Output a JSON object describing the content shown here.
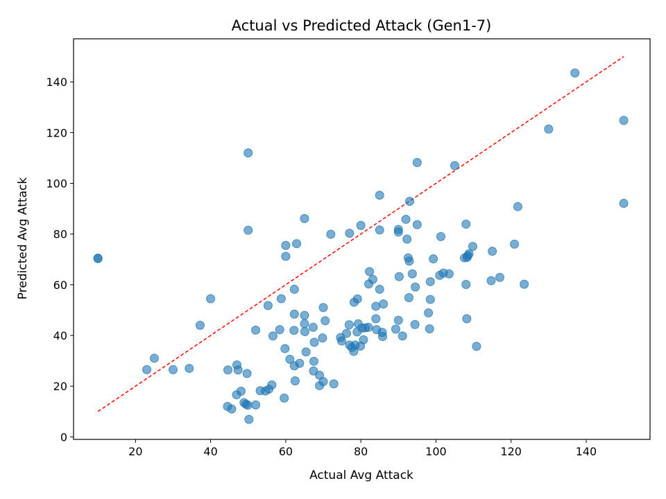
{
  "chart_data": {
    "type": "scatter",
    "title": "Actual vs Predicted Attack (Gen1-7)",
    "xlabel": "Actual Avg Attack",
    "ylabel": "Predicted Avg Attack",
    "xlim": [
      3.5,
      157
    ],
    "ylim": [
      -1,
      157
    ],
    "xticks": [
      20,
      40,
      60,
      80,
      100,
      120,
      140
    ],
    "yticks": [
      0,
      20,
      40,
      60,
      80,
      100,
      120,
      140
    ],
    "grid": false,
    "legend": "none",
    "colors": {
      "points": "#1f77b4",
      "reference_line": "#ff0000",
      "frame": "#000000"
    },
    "reference_line": {
      "style": "dashed",
      "x": [
        10,
        150
      ],
      "y": [
        10,
        150
      ]
    },
    "points": [
      {
        "x": 10,
        "y": 70.3
      },
      {
        "x": 10,
        "y": 70.5
      },
      {
        "x": 23,
        "y": 26.5
      },
      {
        "x": 25,
        "y": 31
      },
      {
        "x": 30,
        "y": 26.5
      },
      {
        "x": 34.3,
        "y": 27
      },
      {
        "x": 37.2,
        "y": 44
      },
      {
        "x": 40,
        "y": 54.5
      },
      {
        "x": 44.5,
        "y": 12
      },
      {
        "x": 44.6,
        "y": 26.4
      },
      {
        "x": 45.6,
        "y": 11
      },
      {
        "x": 46.9,
        "y": 16.6
      },
      {
        "x": 47,
        "y": 28.4
      },
      {
        "x": 47.3,
        "y": 26.4
      },
      {
        "x": 48.1,
        "y": 18
      },
      {
        "x": 48.9,
        "y": 13.5
      },
      {
        "x": 49.4,
        "y": 12.9
      },
      {
        "x": 49.7,
        "y": 25
      },
      {
        "x": 49.9,
        "y": 12.5
      },
      {
        "x": 50,
        "y": 112
      },
      {
        "x": 50,
        "y": 81.5
      },
      {
        "x": 50.2,
        "y": 6.9
      },
      {
        "x": 52,
        "y": 12.6
      },
      {
        "x": 52,
        "y": 42.1
      },
      {
        "x": 53.2,
        "y": 18.2
      },
      {
        "x": 54.6,
        "y": 18.1
      },
      {
        "x": 55.3,
        "y": 51.8
      },
      {
        "x": 55.5,
        "y": 18.8
      },
      {
        "x": 56.3,
        "y": 20.5
      },
      {
        "x": 56.6,
        "y": 39.8
      },
      {
        "x": 58.4,
        "y": 42.3
      },
      {
        "x": 58.8,
        "y": 54.5
      },
      {
        "x": 59.6,
        "y": 15.3
      },
      {
        "x": 59.8,
        "y": 34.8
      },
      {
        "x": 60,
        "y": 75.5
      },
      {
        "x": 60,
        "y": 71.2
      },
      {
        "x": 61.1,
        "y": 30.6
      },
      {
        "x": 62.2,
        "y": 42
      },
      {
        "x": 62.3,
        "y": 28
      },
      {
        "x": 62.3,
        "y": 48.4
      },
      {
        "x": 62.3,
        "y": 58.2
      },
      {
        "x": 62.5,
        "y": 22.1
      },
      {
        "x": 62.9,
        "y": 76.2
      },
      {
        "x": 63.7,
        "y": 29
      },
      {
        "x": 65,
        "y": 86.1
      },
      {
        "x": 65,
        "y": 47.9
      },
      {
        "x": 65,
        "y": 44.6
      },
      {
        "x": 65.1,
        "y": 41.5
      },
      {
        "x": 65.4,
        "y": 33.5
      },
      {
        "x": 67.3,
        "y": 43.2
      },
      {
        "x": 67.4,
        "y": 26
      },
      {
        "x": 67.5,
        "y": 29.8
      },
      {
        "x": 67.6,
        "y": 37.3
      },
      {
        "x": 69,
        "y": 20.2
      },
      {
        "x": 69,
        "y": 24.3
      },
      {
        "x": 69.8,
        "y": 39
      },
      {
        "x": 70,
        "y": 51
      },
      {
        "x": 70,
        "y": 21.8
      },
      {
        "x": 70.5,
        "y": 45.8
      },
      {
        "x": 72,
        "y": 79.9
      },
      {
        "x": 72.8,
        "y": 20.9
      },
      {
        "x": 74.6,
        "y": 39.2
      },
      {
        "x": 74.9,
        "y": 37.8
      },
      {
        "x": 76.2,
        "y": 40.8
      },
      {
        "x": 76.9,
        "y": 44.2
      },
      {
        "x": 77,
        "y": 80.3
      },
      {
        "x": 77,
        "y": 36.2
      },
      {
        "x": 77.6,
        "y": 35.3
      },
      {
        "x": 78.1,
        "y": 33.7
      },
      {
        "x": 78.2,
        "y": 53.1
      },
      {
        "x": 78.5,
        "y": 36.2
      },
      {
        "x": 79,
        "y": 41.4
      },
      {
        "x": 79.1,
        "y": 54.4
      },
      {
        "x": 79.3,
        "y": 44.6
      },
      {
        "x": 79.9,
        "y": 35.8
      },
      {
        "x": 80,
        "y": 83.4
      },
      {
        "x": 80.3,
        "y": 42.9
      },
      {
        "x": 80.7,
        "y": 38.3
      },
      {
        "x": 81.2,
        "y": 43
      },
      {
        "x": 82,
        "y": 43.2
      },
      {
        "x": 82.1,
        "y": 60.3
      },
      {
        "x": 82.3,
        "y": 65.2
      },
      {
        "x": 83.2,
        "y": 62.1
      },
      {
        "x": 84,
        "y": 46.6
      },
      {
        "x": 84,
        "y": 51.5
      },
      {
        "x": 84.2,
        "y": 42.3
      },
      {
        "x": 85,
        "y": 95.3
      },
      {
        "x": 85,
        "y": 81.6
      },
      {
        "x": 85,
        "y": 58.2
      },
      {
        "x": 85.7,
        "y": 41.2
      },
      {
        "x": 85.8,
        "y": 39.6
      },
      {
        "x": 86,
        "y": 52.4
      },
      {
        "x": 89.3,
        "y": 42.5
      },
      {
        "x": 90,
        "y": 81.8
      },
      {
        "x": 90,
        "y": 80.8
      },
      {
        "x": 90,
        "y": 46
      },
      {
        "x": 90.2,
        "y": 63.2
      },
      {
        "x": 91.1,
        "y": 39.8
      },
      {
        "x": 92,
        "y": 85.8
      },
      {
        "x": 92.3,
        "y": 78
      },
      {
        "x": 92.6,
        "y": 70.6
      },
      {
        "x": 92.8,
        "y": 54.9
      },
      {
        "x": 92.9,
        "y": 69.3
      },
      {
        "x": 93,
        "y": 92.9
      },
      {
        "x": 93.7,
        "y": 64.3
      },
      {
        "x": 94.4,
        "y": 44.3
      },
      {
        "x": 94.5,
        "y": 59.1
      },
      {
        "x": 95,
        "y": 108.2
      },
      {
        "x": 95,
        "y": 83.7
      },
      {
        "x": 98,
        "y": 48.9
      },
      {
        "x": 98.3,
        "y": 42.6
      },
      {
        "x": 98.5,
        "y": 61.2
      },
      {
        "x": 98.5,
        "y": 54.2
      },
      {
        "x": 99.3,
        "y": 70.2
      },
      {
        "x": 101,
        "y": 63.7
      },
      {
        "x": 101.3,
        "y": 79
      },
      {
        "x": 102,
        "y": 64.6
      },
      {
        "x": 103.5,
        "y": 64.3
      },
      {
        "x": 105,
        "y": 107
      },
      {
        "x": 107.6,
        "y": 70.6
      },
      {
        "x": 108,
        "y": 83.9
      },
      {
        "x": 108,
        "y": 60.1
      },
      {
        "x": 108.2,
        "y": 46.6
      },
      {
        "x": 108.3,
        "y": 70.8
      },
      {
        "x": 108.5,
        "y": 71.5
      },
      {
        "x": 108.8,
        "y": 72.2
      },
      {
        "x": 109.8,
        "y": 75.1
      },
      {
        "x": 110.8,
        "y": 35.7
      },
      {
        "x": 114.7,
        "y": 61.6
      },
      {
        "x": 115,
        "y": 73.2
      },
      {
        "x": 117,
        "y": 62.9
      },
      {
        "x": 120.9,
        "y": 76
      },
      {
        "x": 121.8,
        "y": 90.8
      },
      {
        "x": 123.5,
        "y": 60.2
      },
      {
        "x": 130,
        "y": 121.4
      },
      {
        "x": 137,
        "y": 143.5
      },
      {
        "x": 150,
        "y": 124.8
      },
      {
        "x": 150,
        "y": 92.1
      }
    ]
  }
}
